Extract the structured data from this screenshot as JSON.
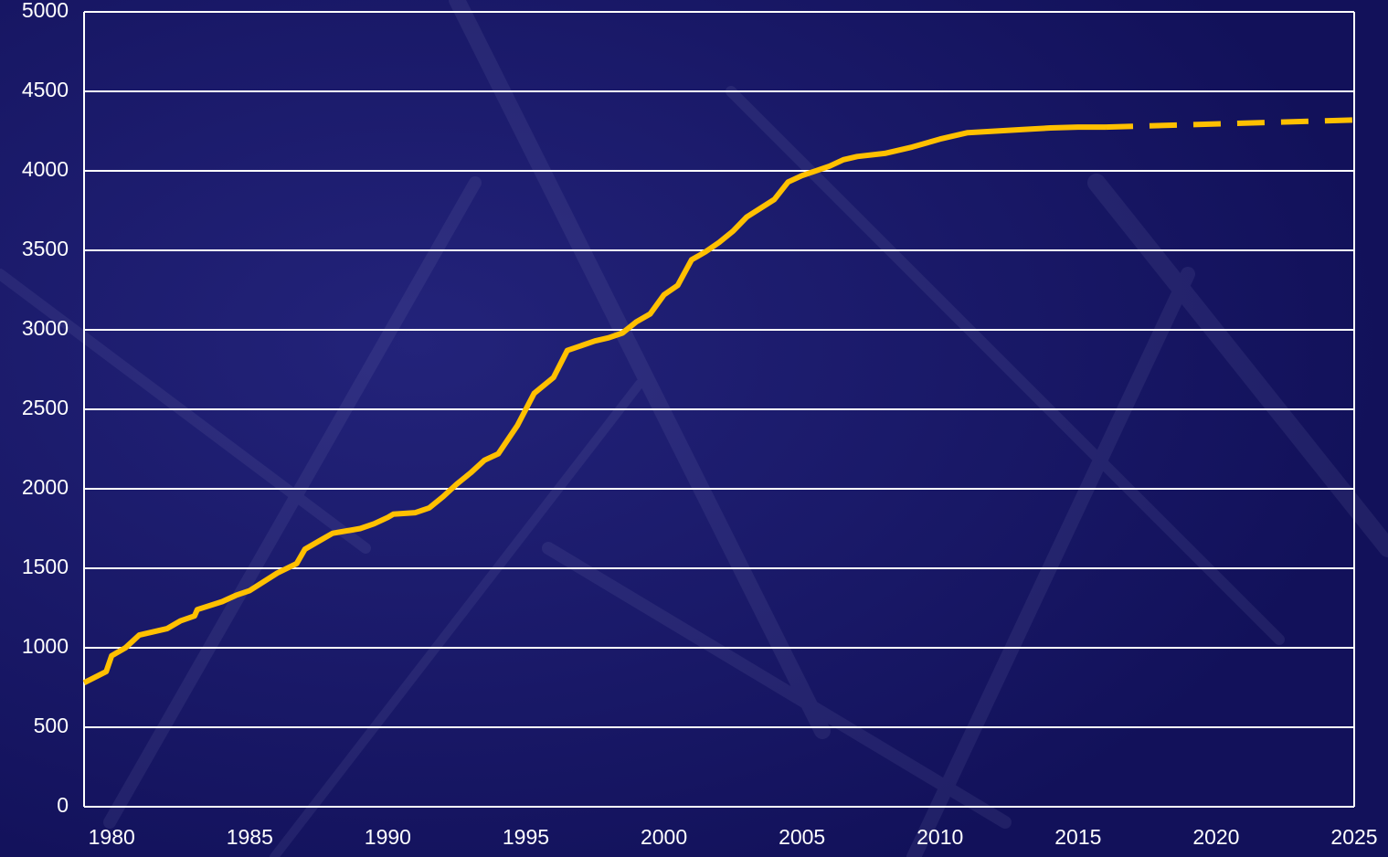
{
  "chart_data": {
    "type": "line",
    "x": [
      1979,
      1979.8,
      1980,
      1980.5,
      1981,
      1982,
      1982.5,
      1983,
      1983.1,
      1984,
      1984.5,
      1985,
      1986,
      1986.7,
      1987,
      1987.5,
      1988,
      1989,
      1989.5,
      1990,
      1990.2,
      1991,
      1991.5,
      1992,
      1992.5,
      1993,
      1993.5,
      1994,
      1994.7,
      1995.3,
      1996,
      1996.5,
      1997,
      1997.5,
      1998,
      1998.5,
      1999,
      1999.5,
      2000,
      2000.5,
      2001,
      2001.5,
      2002,
      2002.5,
      2003,
      2004,
      2004.5,
      2005,
      2006,
      2006.5,
      2007,
      2008,
      2009,
      2010,
      2011,
      2012,
      2013,
      2014,
      2015,
      2016,
      2025
    ],
    "series": [
      {
        "color": "#ffc000",
        "dash": false,
        "values": [
          780,
          850,
          950,
          1000,
          1080,
          1120,
          1170,
          1200,
          1240,
          1290,
          1330,
          1360,
          1470,
          1530,
          1620,
          1670,
          1720,
          1750,
          1780,
          1820,
          1840,
          1850,
          1880,
          1950,
          2030,
          2100,
          2180,
          2220,
          2400,
          2600,
          2700,
          2870,
          2900,
          2930,
          2950,
          2980,
          3050,
          3100,
          3220,
          3280,
          3440,
          3490,
          3550,
          3620,
          3710,
          3820,
          3930,
          3970,
          4030,
          4070,
          4090,
          4110,
          4150,
          4200,
          4240,
          4250,
          4260,
          4270,
          4275,
          4275,
          null
        ]
      },
      {
        "color": "#ffc000",
        "dash": true,
        "values": [
          null,
          null,
          null,
          null,
          null,
          null,
          null,
          null,
          null,
          null,
          null,
          null,
          null,
          null,
          null,
          null,
          null,
          null,
          null,
          null,
          null,
          null,
          null,
          null,
          null,
          null,
          null,
          null,
          null,
          null,
          null,
          null,
          null,
          null,
          null,
          null,
          null,
          null,
          null,
          null,
          null,
          null,
          null,
          null,
          null,
          null,
          null,
          null,
          null,
          null,
          null,
          null,
          null,
          null,
          null,
          null,
          null,
          null,
          null,
          4275,
          4320
        ]
      }
    ],
    "xlim": [
      1979,
      2025
    ],
    "xticks": [
      1980,
      1985,
      1990,
      1995,
      2000,
      2005,
      2010,
      2015,
      2020,
      2025
    ],
    "ylim": [
      0,
      5000
    ],
    "yticks": [
      0,
      500,
      1000,
      1500,
      2000,
      2500,
      3000,
      3500,
      4000,
      4500,
      5000
    ],
    "grid": true
  }
}
